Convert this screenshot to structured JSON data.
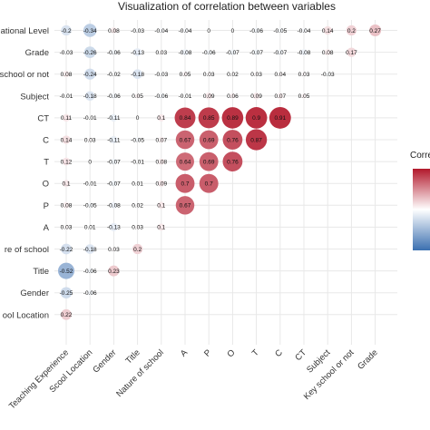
{
  "chart_data": {
    "type": "heatmap",
    "title": "Visualization of correlation between variables",
    "legend_title": "Corre",
    "row_labels": [
      "ational Level",
      "Grade",
      "school or not",
      "Subject",
      "CT",
      "C",
      "T",
      "O",
      "P",
      "A",
      "re of school",
      "Title",
      "Gender",
      "ool Location"
    ],
    "col_labels": [
      "Teaching Experience",
      "Scool Location",
      "Gender",
      "Title",
      "Nature of school",
      "A",
      "P",
      "O",
      "T",
      "C",
      "CT",
      "Subject",
      "Key school or not",
      "Grade"
    ],
    "value_range": [
      -1,
      1
    ],
    "colors": {
      "negative": "#3b6fb0",
      "zero": "#ffffff",
      "positive": "#b2182b",
      "grid": "#e8e8e8"
    },
    "values": [
      [
        -0.2,
        -0.34,
        0.08,
        -0.03,
        -0.04,
        -0.04,
        0,
        0,
        -0.06,
        -0.05,
        -0.04,
        0.14,
        0.2,
        0.27
      ],
      [
        -0.03,
        -0.26,
        -0.06,
        -0.13,
        0.03,
        -0.08,
        -0.06,
        -0.07,
        -0.07,
        -0.07,
        -0.08,
        0.08,
        0.17,
        null
      ],
      [
        0.08,
        -0.24,
        -0.02,
        -0.18,
        -0.03,
        0.05,
        0.03,
        0.02,
        0.03,
        0.04,
        0.03,
        -0.03,
        null,
        null
      ],
      [
        -0.01,
        -0.18,
        -0.06,
        0.05,
        -0.06,
        -0.01,
        0.09,
        0.06,
        0.09,
        0.07,
        0.05,
        null,
        null,
        null
      ],
      [
        0.11,
        -0.01,
        -0.11,
        0,
        0.1,
        0.84,
        0.85,
        0.89,
        0.9,
        0.91,
        null,
        null,
        null,
        null
      ],
      [
        0.14,
        0.03,
        -0.11,
        -0.05,
        0.07,
        0.67,
        0.69,
        0.76,
        0.87,
        null,
        null,
        null,
        null,
        null
      ],
      [
        0.12,
        0,
        -0.07,
        -0.01,
        0.08,
        0.64,
        0.69,
        0.76,
        null,
        null,
        null,
        null,
        null,
        null
      ],
      [
        0.1,
        -0.01,
        -0.07,
        0.01,
        0.09,
        0.7,
        0.7,
        null,
        null,
        null,
        null,
        null,
        null,
        null
      ],
      [
        0.08,
        -0.05,
        -0.08,
        0.02,
        0.1,
        0.67,
        null,
        null,
        null,
        null,
        null,
        null,
        null,
        null
      ],
      [
        0.03,
        0.01,
        -0.13,
        0.03,
        0.1,
        null,
        null,
        null,
        null,
        null,
        null,
        null,
        null,
        null
      ],
      [
        -0.22,
        -0.18,
        0.03,
        0.2,
        null,
        null,
        null,
        null,
        null,
        null,
        null,
        null,
        null,
        null
      ],
      [
        -0.52,
        -0.06,
        0.23,
        null,
        null,
        null,
        null,
        null,
        null,
        null,
        null,
        null,
        null,
        null
      ],
      [
        -0.25,
        -0.06,
        null,
        null,
        null,
        null,
        null,
        null,
        null,
        null,
        null,
        null,
        null,
        null
      ],
      [
        0.22,
        null,
        null,
        null,
        null,
        null,
        null,
        null,
        null,
        null,
        null,
        null,
        null,
        null
      ]
    ]
  }
}
